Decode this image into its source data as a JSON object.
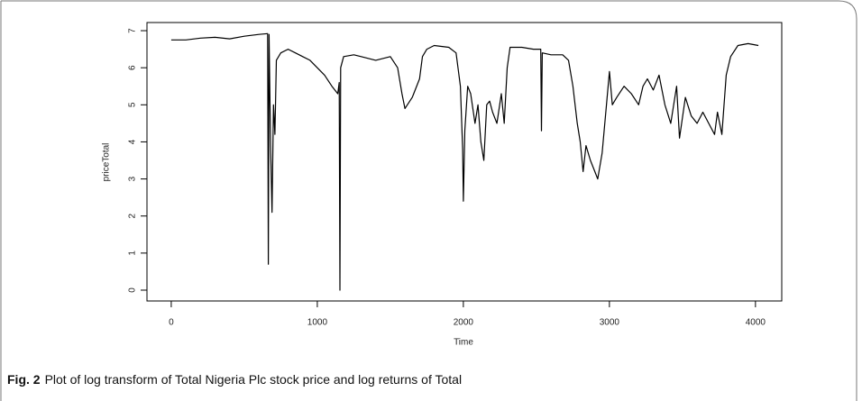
{
  "chart_data": {
    "type": "line",
    "x_label": "Time",
    "y_label": "priceTotal",
    "caption_label": "Fig. 2",
    "caption": "Plot of log transform of Total Nigeria Plc stock price and log returns of Total",
    "color": "#000000",
    "x": [
      0,
      100,
      200,
      300,
      400,
      500,
      600,
      660,
      665,
      670,
      680,
      690,
      700,
      710,
      720,
      750,
      800,
      850,
      900,
      950,
      1000,
      1050,
      1100,
      1140,
      1150,
      1155,
      1160,
      1180,
      1250,
      1300,
      1400,
      1500,
      1550,
      1580,
      1600,
      1650,
      1700,
      1720,
      1750,
      1800,
      1900,
      1950,
      1980,
      1995,
      2000,
      2010,
      2030,
      2050,
      2080,
      2100,
      2120,
      2140,
      2160,
      2180,
      2200,
      2230,
      2260,
      2280,
      2300,
      2320,
      2400,
      2480,
      2530,
      2535,
      2540,
      2600,
      2680,
      2720,
      2750,
      2780,
      2800,
      2820,
      2840,
      2870,
      2900,
      2920,
      2950,
      2980,
      3000,
      3020,
      3050,
      3100,
      3150,
      3200,
      3230,
      3260,
      3300,
      3340,
      3380,
      3420,
      3460,
      3480,
      3520,
      3560,
      3600,
      3640,
      3680,
      3720,
      3740,
      3770,
      3800,
      3830,
      3880,
      3950,
      4020
    ],
    "values": [
      6.75,
      6.75,
      6.8,
      6.82,
      6.78,
      6.85,
      6.9,
      6.92,
      0.7,
      6.9,
      3.9,
      2.1,
      5.0,
      4.2,
      6.2,
      6.4,
      6.5,
      6.4,
      6.3,
      6.2,
      6.0,
      5.8,
      5.5,
      5.3,
      5.6,
      0.0,
      6.0,
      6.3,
      6.35,
      6.3,
      6.2,
      6.3,
      6.0,
      5.3,
      4.9,
      5.2,
      5.7,
      6.3,
      6.5,
      6.6,
      6.55,
      6.4,
      5.5,
      3.8,
      2.4,
      4.3,
      5.5,
      5.3,
      4.5,
      5.0,
      4.0,
      3.5,
      5.0,
      5.1,
      4.8,
      4.5,
      5.3,
      4.5,
      6.0,
      6.55,
      6.55,
      6.5,
      6.5,
      4.3,
      6.4,
      6.35,
      6.35,
      6.2,
      5.5,
      4.5,
      4.0,
      3.2,
      3.9,
      3.5,
      3.2,
      3.0,
      3.7,
      5.0,
      5.9,
      5.0,
      5.2,
      5.5,
      5.3,
      5.0,
      5.5,
      5.7,
      5.4,
      5.8,
      5.0,
      4.5,
      5.5,
      4.1,
      5.2,
      4.7,
      4.5,
      4.8,
      4.5,
      4.2,
      4.8,
      4.2,
      5.8,
      6.3,
      6.6,
      6.65,
      6.6
    ],
    "xlim": [
      -160,
      4180
    ],
    "ylim": [
      -0.28,
      7.21
    ],
    "xticks": [
      0,
      1000,
      2000,
      3000,
      4000
    ],
    "yticks": [
      0,
      1,
      2,
      3,
      4,
      5,
      6,
      7
    ]
  }
}
